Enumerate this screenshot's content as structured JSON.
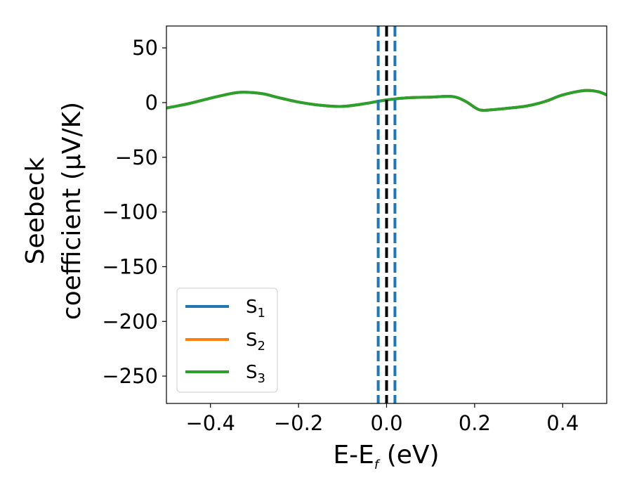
{
  "chart_data": {
    "type": "line",
    "xlabel_main": "E-E",
    "xlabel_sub": "f",
    "xlabel_unit": " (eV)",
    "ylabel_line1": "Seebeck",
    "ylabel_line2": "coefficient  (μV/K)",
    "xlim": [
      -0.5,
      0.5
    ],
    "ylim": [
      -275,
      70
    ],
    "xticks": [
      -0.4,
      -0.2,
      0.0,
      0.2,
      0.4
    ],
    "xtick_labels": [
      "−0.4",
      "−0.2",
      "0.0",
      "0.2",
      "0.4"
    ],
    "yticks": [
      50,
      0,
      -50,
      -100,
      -150,
      -200,
      -250
    ],
    "ytick_labels": [
      "50",
      "0",
      "−50",
      "−100",
      "−150",
      "−200",
      "−250"
    ],
    "grid": false,
    "legend_position": "lower-left",
    "x": [
      -0.5,
      -0.45,
      -0.4,
      -0.35,
      -0.32,
      -0.28,
      -0.25,
      -0.2,
      -0.15,
      -0.1,
      -0.05,
      0.0,
      0.05,
      0.1,
      0.15,
      0.18,
      0.21,
      0.24,
      0.28,
      0.32,
      0.36,
      0.4,
      0.45,
      0.48,
      0.5
    ],
    "series": [
      {
        "name": "S",
        "name_sub": "1",
        "color": "#1f77b4",
        "values": [
          -5,
          -1,
          4,
          8.5,
          9.5,
          8,
          5,
          0.5,
          -2.5,
          -3.5,
          -1,
          2.5,
          4.5,
          5,
          5.5,
          1,
          -6.5,
          -6.5,
          -5,
          -3,
          1,
          7,
          11,
          10,
          7
        ]
      },
      {
        "name": "S",
        "name_sub": "2",
        "color": "#ff7f0e",
        "values": [
          -5,
          -1,
          4,
          8.5,
          9.5,
          8,
          5,
          0.5,
          -2.5,
          -3.5,
          -1,
          2.5,
          4.5,
          5,
          5.5,
          1,
          -6.5,
          -6.5,
          -5,
          -3,
          1,
          7,
          11,
          10,
          7
        ]
      },
      {
        "name": "S",
        "name_sub": "3",
        "color": "#2ca02c",
        "values": [
          -5,
          -1,
          4,
          8.5,
          9.5,
          8,
          5,
          0.5,
          -2.5,
          -3.5,
          -1,
          2.5,
          4.5,
          5,
          5.5,
          1,
          -6.5,
          -6.5,
          -5,
          -3,
          1,
          7,
          11,
          10,
          7
        ]
      }
    ],
    "vlines": [
      {
        "x": 0.0,
        "color": "#000000",
        "style": "dashed"
      },
      {
        "x": -0.019,
        "color": "#1f77b4",
        "style": "dashed"
      },
      {
        "x": 0.019,
        "color": "#1f77b4",
        "style": "dashed"
      }
    ]
  }
}
